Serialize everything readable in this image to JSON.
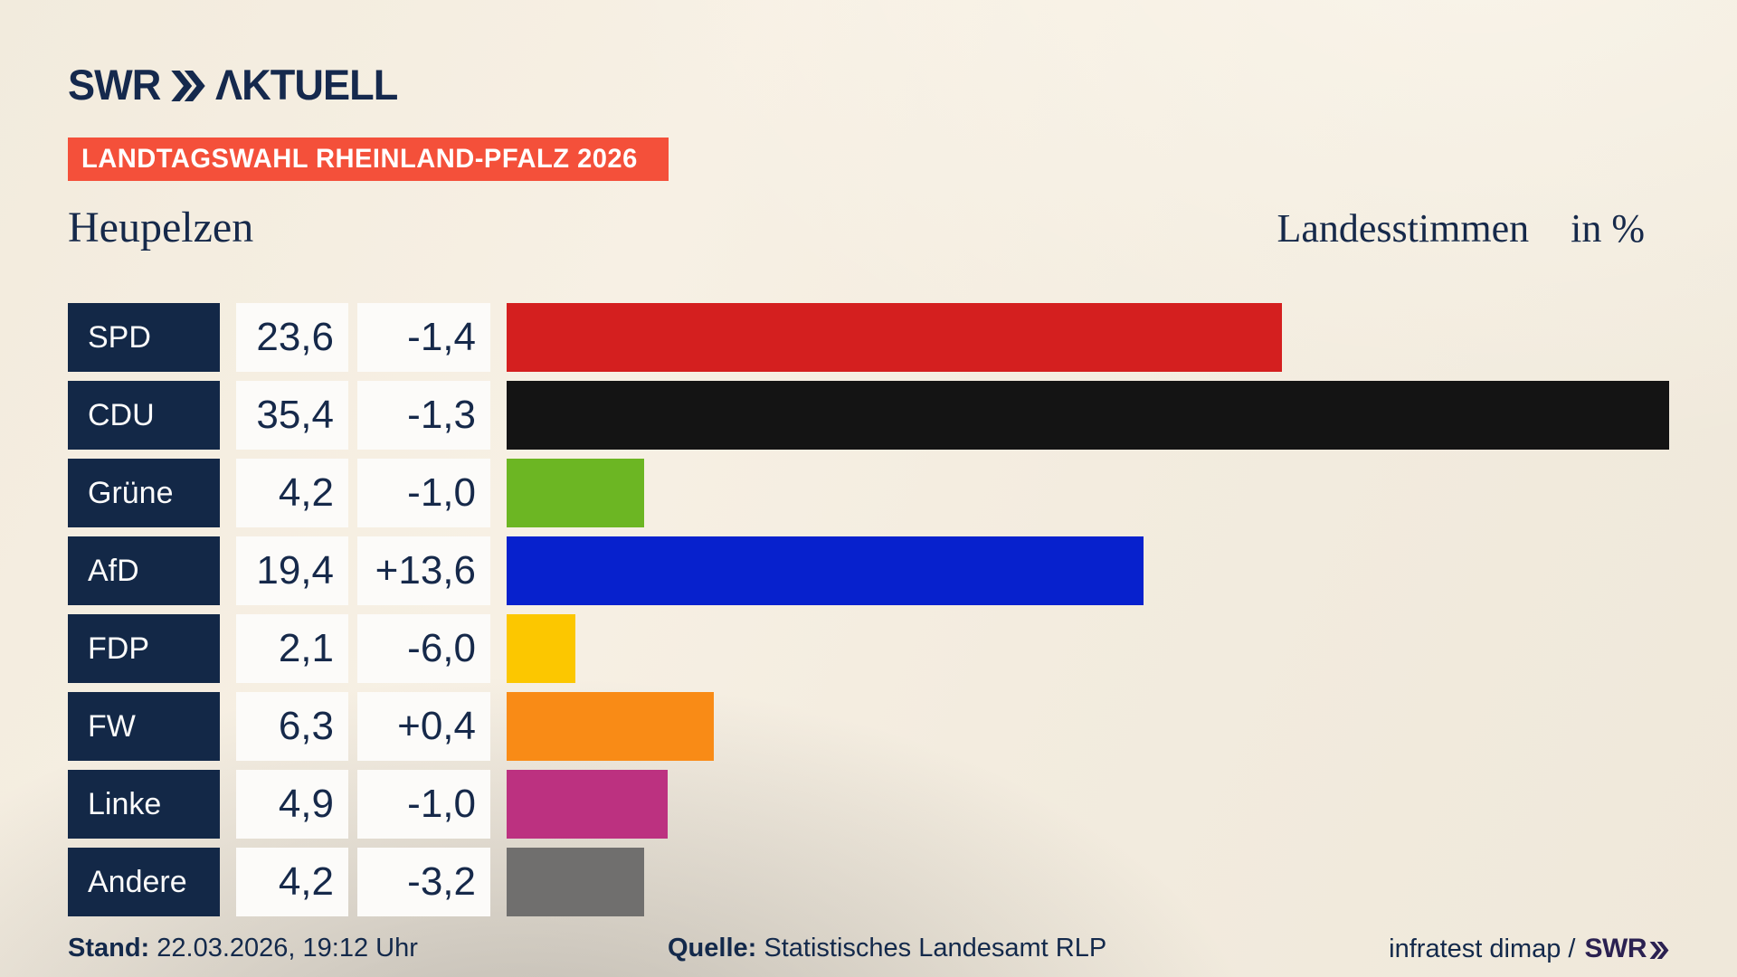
{
  "brand": {
    "logo_swr": "SWR",
    "logo_aktuell": "ΛKTUELL"
  },
  "badge": {
    "text": "LANDTAGSWAHL RHEINLAND-PFALZ 2026",
    "bg_color": "#f4503a"
  },
  "header": {
    "title": "Heupelzen",
    "value_label": "Landesstimmen",
    "unit_label": "in %"
  },
  "chart_data": {
    "type": "bar",
    "orientation": "horizontal",
    "title": "Heupelzen",
    "subtitle": "Landesstimmen in %",
    "unit": "%",
    "max_value": 35.4,
    "categories": [
      "SPD",
      "CDU",
      "Grüne",
      "AfD",
      "FDP",
      "FW",
      "Linke",
      "Andere"
    ],
    "series": [
      {
        "name": "value",
        "values": [
          23.6,
          35.4,
          4.2,
          19.4,
          2.1,
          6.3,
          4.9,
          4.2
        ]
      },
      {
        "name": "change",
        "values": [
          -1.4,
          -1.3,
          -1.0,
          13.6,
          -6.0,
          0.4,
          -1.0,
          -3.2
        ]
      }
    ],
    "rows": [
      {
        "party": "SPD",
        "value": "23,6",
        "value_num": 23.6,
        "change": "-1,4",
        "color": "#d41f1f"
      },
      {
        "party": "CDU",
        "value": "35,4",
        "value_num": 35.4,
        "change": "-1,3",
        "color": "#141414"
      },
      {
        "party": "Grüne",
        "value": "4,2",
        "value_num": 4.2,
        "change": "-1,0",
        "color": "#6cb623"
      },
      {
        "party": "AfD",
        "value": "19,4",
        "value_num": 19.4,
        "change": "+13,6",
        "color": "#0721cd"
      },
      {
        "party": "FDP",
        "value": "2,1",
        "value_num": 2.1,
        "change": "-6,0",
        "color": "#fcc700"
      },
      {
        "party": "FW",
        "value": "6,3",
        "value_num": 6.3,
        "change": "+0,4",
        "color": "#f98b16"
      },
      {
        "party": "Linke",
        "value": "4,9",
        "value_num": 4.9,
        "change": "-1,0",
        "color": "#bc3180"
      },
      {
        "party": "Andere",
        "value": "4,2",
        "value_num": 4.2,
        "change": "-3,2",
        "color": "#706f6e"
      }
    ],
    "colors": {
      "label_box": "#132847",
      "value_box": "#fcfbf9",
      "text_navy": "#16294a"
    },
    "legend": "none",
    "grid": false
  },
  "footer": {
    "stand_label": "Stand:",
    "stand_value": "22.03.2026, 19:12 Uhr",
    "quelle_label": "Quelle:",
    "quelle_value": "Statistisches Landesamt RLP",
    "credit_text": "infratest dimap /",
    "credit_brand": "SWR"
  }
}
